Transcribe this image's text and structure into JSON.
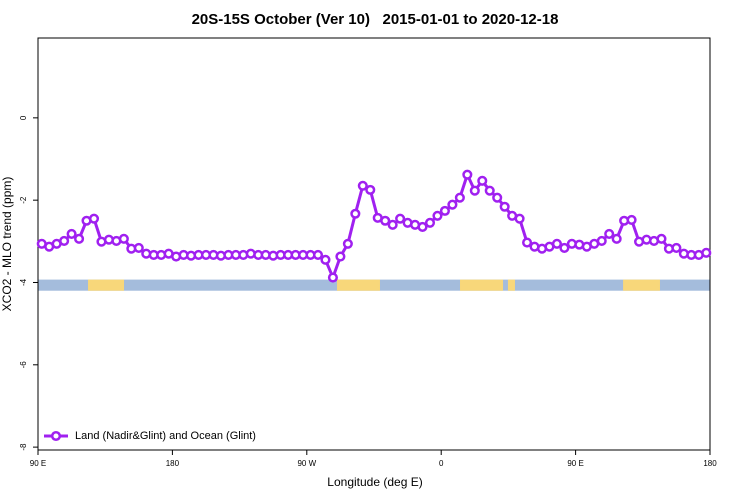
{
  "chart_data": {
    "type": "line",
    "title": "20S-15S October (Ver 10)   2015-01-01 to 2020-12-18",
    "xlabel": "Longitude (deg E)",
    "ylabel": "XCO2 - MLO trend (ppm)",
    "xlim": [
      90,
      540
    ],
    "ylim": [
      -8.07,
      1.94
    ],
    "xticks": [
      {
        "value": 90,
        "label": "90 E"
      },
      {
        "value": 180,
        "label": "180"
      },
      {
        "value": 270,
        "label": "90 W"
      },
      {
        "value": 360,
        "label": "0"
      },
      {
        "value": 450,
        "label": "90 E"
      },
      {
        "value": 540,
        "label": "180"
      }
    ],
    "yticks": [
      0,
      -2,
      -4,
      -6,
      -8
    ],
    "legend": "bottom-left",
    "band": {
      "ylim": [
        -4.2,
        -3.93
      ],
      "ocean_color": "#a4bcdc",
      "land_color": "#f8d77a",
      "land_ranges": [
        [
          123.5,
          147.6
        ],
        [
          290.2,
          319
        ],
        [
          372.6,
          401.4
        ],
        [
          404.7,
          409.4
        ],
        [
          481.8,
          506.5
        ]
      ]
    },
    "x": [
      92.5,
      97.5,
      102.5,
      107.5,
      112.5,
      117.5,
      122.5,
      127.5,
      132.5,
      137.5,
      142.5,
      147.5,
      152.5,
      157.5,
      162.5,
      167.5,
      172.5,
      177.5,
      182.5,
      187.5,
      192.5,
      197.5,
      202.5,
      207.5,
      212.5,
      217.5,
      222.5,
      227.5,
      232.5,
      237.5,
      242.5,
      247.5,
      252.5,
      257.5,
      262.5,
      267.5,
      272.5,
      277.5,
      282.5,
      287.5,
      292.5,
      297.5,
      302.5,
      307.5,
      312.5,
      317.5,
      322.5,
      327.5,
      332.5,
      337.5,
      342.5,
      347.5,
      352.5,
      357.5,
      362.5,
      367.5,
      372.5,
      377.5,
      382.5,
      387.5,
      392.5,
      397.5,
      402.5,
      407.5,
      412.5,
      417.5,
      422.5,
      427.5,
      432.5,
      437.5,
      442.5,
      447.5,
      452.5,
      457.5,
      462.5,
      467.5,
      472.5,
      477.5,
      482.5,
      487.5,
      492.5,
      497.5,
      502.5,
      507.5,
      512.5,
      517.5,
      522.5,
      527.5,
      532.5,
      537.5
    ],
    "series": [
      {
        "name": "Land (Nadir&Glint) and Ocean (Glint)",
        "color": "#a020f0",
        "values": [
          -3.06,
          -3.13,
          -3.06,
          -2.99,
          -2.82,
          -2.94,
          -2.5,
          -2.45,
          -3.01,
          -2.96,
          -2.99,
          -2.94,
          -3.18,
          -3.16,
          -3.3,
          -3.33,
          -3.33,
          -3.3,
          -3.37,
          -3.33,
          -3.35,
          -3.33,
          -3.33,
          -3.33,
          -3.35,
          -3.33,
          -3.33,
          -3.33,
          -3.3,
          -3.33,
          -3.33,
          -3.35,
          -3.33,
          -3.33,
          -3.33,
          -3.33,
          -3.33,
          -3.33,
          -3.45,
          -3.88,
          -3.37,
          -3.06,
          -2.33,
          -1.65,
          -1.75,
          -2.43,
          -2.5,
          -2.6,
          -2.45,
          -2.55,
          -2.6,
          -2.65,
          -2.55,
          -2.38,
          -2.26,
          -2.11,
          -1.94,
          -1.38,
          -1.77,
          -1.53,
          -1.77,
          -1.94,
          -2.16,
          -2.38,
          -2.45,
          -3.03,
          -3.13,
          -3.18,
          -3.13,
          -3.06,
          -3.16,
          -3.06,
          -3.08,
          -3.13,
          -3.06,
          -2.99,
          -2.82,
          -2.94,
          -2.5,
          -2.48,
          -3.01,
          -2.96,
          -2.99,
          -2.94,
          -3.18,
          -3.16,
          -3.3,
          -3.33,
          -3.33,
          -3.28
        ]
      }
    ]
  }
}
